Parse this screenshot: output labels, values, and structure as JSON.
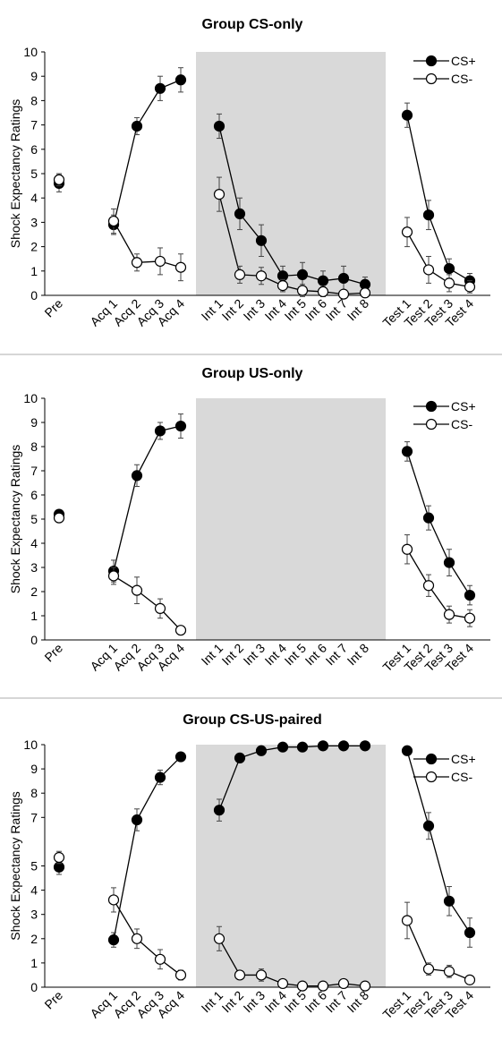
{
  "chart_data": [
    {
      "type": "line",
      "title": "Group CS-only",
      "ylabel": "Shock Expectancy Ratings",
      "ylim": [
        0,
        10
      ],
      "yticks": [
        0,
        1,
        2,
        3,
        4,
        5,
        6,
        7,
        8,
        9,
        10
      ],
      "categories": [
        "Pre",
        "Acq 1",
        "Acq 2",
        "Acq 3",
        "Acq 4",
        "Int 1",
        "Int 2",
        "Int 3",
        "Int 4",
        "Int 5",
        "Int 6",
        "Int 7",
        "Int 8",
        "Test 1",
        "Test 2",
        "Test 3",
        "Test 4"
      ],
      "shaded_phase": [
        "Int 1",
        "Int 8"
      ],
      "legend_position": "top-right",
      "series": [
        {
          "name": "CS+",
          "marker": "filled",
          "values": [
            4.6,
            2.9,
            6.95,
            8.5,
            8.85,
            6.95,
            3.35,
            2.25,
            0.8,
            0.85,
            0.6,
            0.7,
            0.45,
            7.4,
            3.3,
            1.1,
            0.6
          ],
          "errors": [
            0.35,
            0.4,
            0.35,
            0.5,
            0.5,
            0.5,
            0.65,
            0.65,
            0.4,
            0.5,
            0.4,
            0.5,
            0.3,
            0.5,
            0.6,
            0.4,
            0.3
          ]
        },
        {
          "name": "CS-",
          "marker": "open",
          "values": [
            4.75,
            3.05,
            1.35,
            1.4,
            1.15,
            4.15,
            0.85,
            0.8,
            0.4,
            0.2,
            0.15,
            0.05,
            0.1,
            2.6,
            1.05,
            0.5,
            0.35
          ],
          "errors": [
            0.25,
            0.5,
            0.35,
            0.55,
            0.55,
            0.7,
            0.35,
            0.35,
            0.25,
            0.25,
            0.2,
            0.15,
            0.15,
            0.6,
            0.55,
            0.35,
            0.25
          ]
        }
      ]
    },
    {
      "type": "line",
      "title": "Group US-only",
      "ylabel": "Shock Expectancy Ratings",
      "ylim": [
        0,
        10
      ],
      "yticks": [
        0,
        1,
        2,
        3,
        4,
        5,
        6,
        7,
        8,
        9,
        10
      ],
      "categories": [
        "Pre",
        "Acq 1",
        "Acq 2",
        "Acq 3",
        "Acq 4",
        "Int 1",
        "Int 2",
        "Int 3",
        "Int 4",
        "Int 5",
        "Int 6",
        "Int 7",
        "Int 8",
        "Test 1",
        "Test 2",
        "Test 3",
        "Test 4"
      ],
      "shaded_phase": [
        "Int 1",
        "Int 8"
      ],
      "legend_position": "top-right",
      "series": [
        {
          "name": "CS+",
          "marker": "filled",
          "values": [
            5.2,
            2.85,
            6.8,
            8.65,
            8.85,
            null,
            null,
            null,
            null,
            null,
            null,
            null,
            null,
            7.8,
            5.05,
            3.2,
            1.85
          ],
          "errors": [
            0.1,
            0.45,
            0.45,
            0.35,
            0.5,
            null,
            null,
            null,
            null,
            null,
            null,
            null,
            null,
            0.4,
            0.5,
            0.55,
            0.4
          ]
        },
        {
          "name": "CS-",
          "marker": "open",
          "values": [
            5.05,
            2.65,
            2.05,
            1.3,
            0.4,
            null,
            null,
            null,
            null,
            null,
            null,
            null,
            null,
            3.75,
            2.25,
            1.05,
            0.9
          ],
          "errors": [
            0.1,
            0.35,
            0.55,
            0.4,
            0.1,
            null,
            null,
            null,
            null,
            null,
            null,
            null,
            null,
            0.6,
            0.45,
            0.35,
            0.35
          ]
        }
      ]
    },
    {
      "type": "line",
      "title": "Group CS-US-paired",
      "ylabel": "Shock Expectancy Ratings",
      "ylim": [
        0,
        10
      ],
      "yticks": [
        0,
        1,
        2,
        3,
        4,
        5,
        7,
        8,
        9,
        10
      ],
      "categories": [
        "Pre",
        "Acq 1",
        "Acq 2",
        "Acq 3",
        "Acq 4",
        "Int 1",
        "Int 2",
        "Int 3",
        "Int 4",
        "Int 5",
        "Int 6",
        "Int 7",
        "Int 8",
        "Test 1",
        "Test 2",
        "Test 3",
        "Test 4"
      ],
      "shaded_phase": [
        "Int 1",
        "Int 8"
      ],
      "legend_position": "top-right",
      "series": [
        {
          "name": "CS+",
          "marker": "filled",
          "values": [
            4.95,
            1.95,
            6.9,
            8.65,
            9.5,
            7.3,
            9.45,
            9.75,
            9.9,
            9.9,
            9.95,
            9.95,
            9.95,
            9.75,
            6.65,
            3.55,
            2.25
          ],
          "errors": [
            0.3,
            0.3,
            0.45,
            0.3,
            0.1,
            0.45,
            0.15,
            0.1,
            0.05,
            0.05,
            0.05,
            0.05,
            0.05,
            0.1,
            0.55,
            0.6,
            0.6
          ]
        },
        {
          "name": "CS-",
          "marker": "open",
          "values": [
            5.35,
            3.6,
            2.0,
            1.15,
            0.5,
            2.0,
            0.5,
            0.5,
            0.15,
            0.05,
            0.05,
            0.15,
            0.05,
            2.75,
            0.75,
            0.65,
            0.3
          ],
          "errors": [
            0.25,
            0.5,
            0.4,
            0.4,
            0.2,
            0.5,
            0.15,
            0.25,
            0.1,
            0.05,
            0.05,
            0.1,
            0.05,
            0.75,
            0.25,
            0.25,
            0.1
          ]
        }
      ]
    }
  ]
}
